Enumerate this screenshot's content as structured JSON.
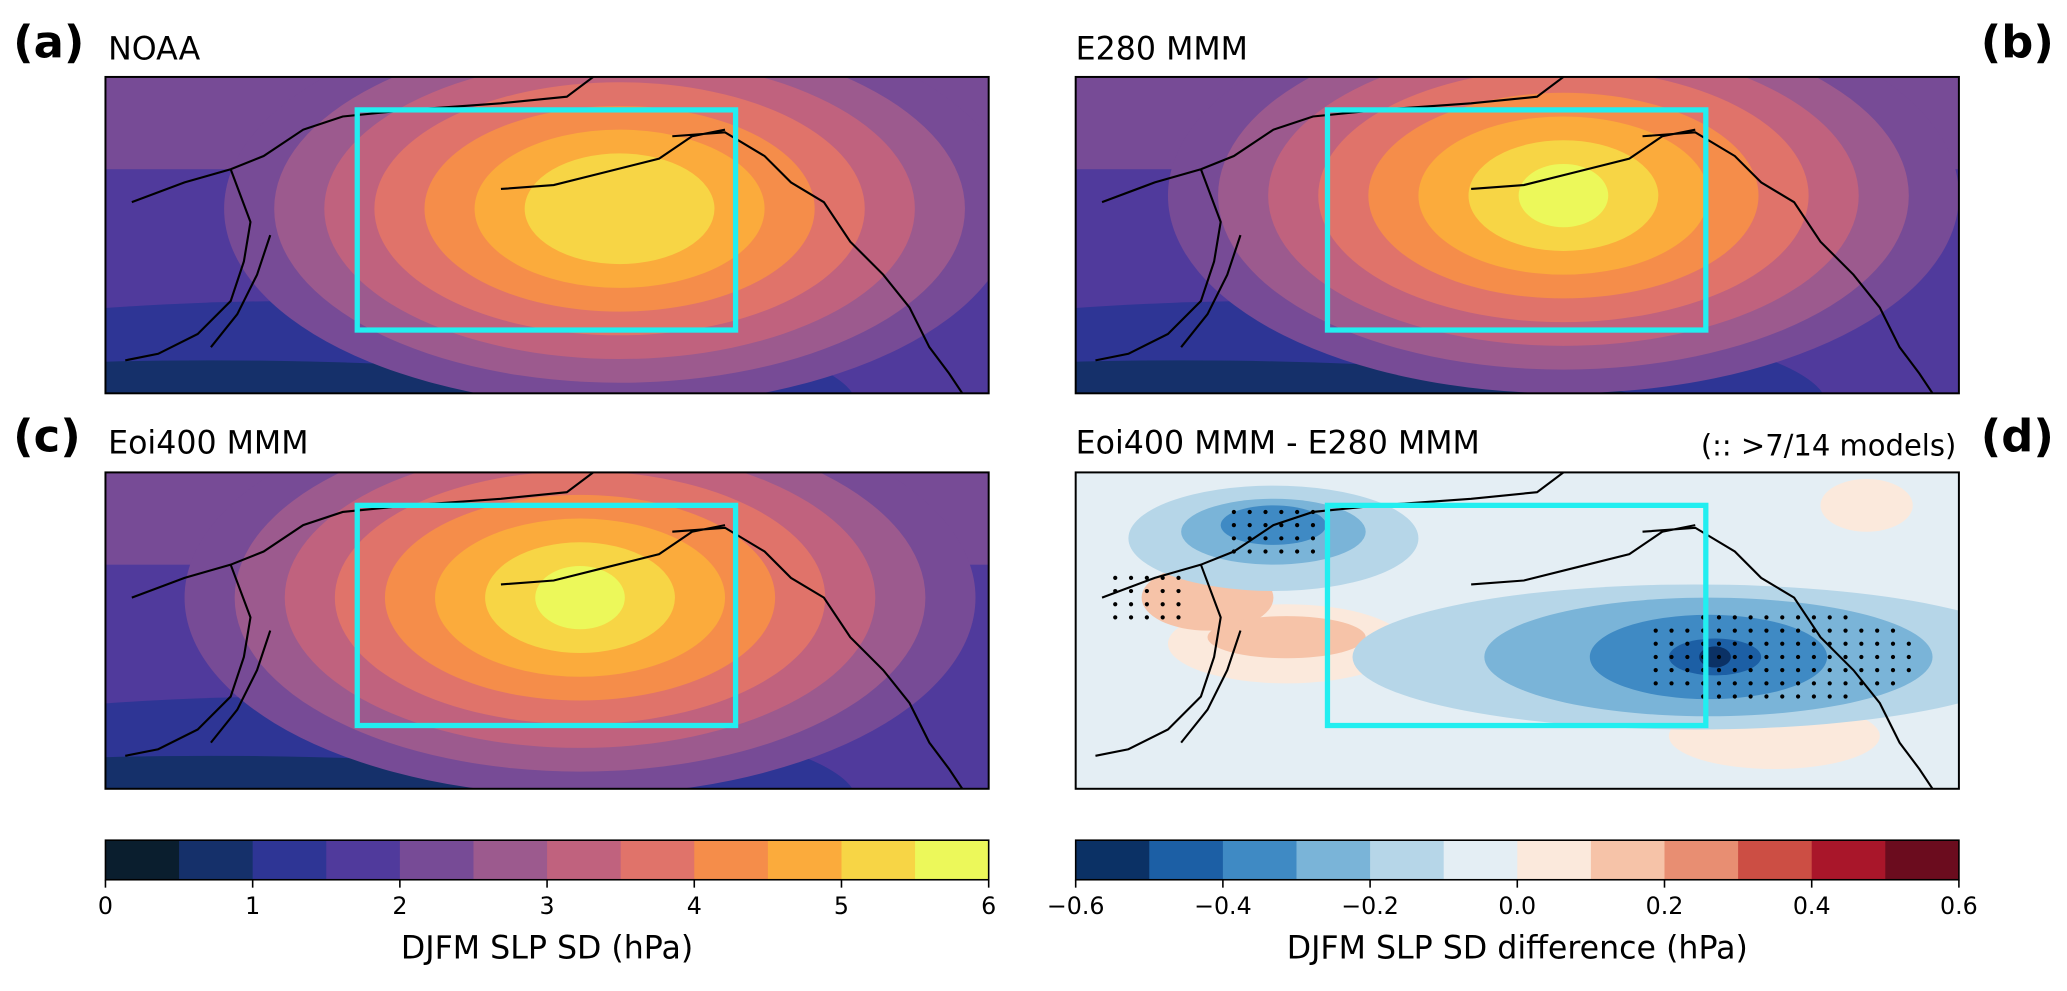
{
  "panels": [
    {
      "letter": "(a)",
      "title": "NOAA"
    },
    {
      "letter": "(b)",
      "title": "E280 MMM"
    },
    {
      "letter": "(c)",
      "title": "Eoi400 MMM"
    },
    {
      "letter": "(d)",
      "title": "Eoi400 MMM - E280 MMM",
      "note": "(:: >7/14 models)"
    }
  ],
  "colorbars": [
    {
      "label": "DJFM SLP SD (hPa)",
      "lim": [
        0,
        6
      ],
      "ticks": [
        0,
        1,
        2,
        3,
        4,
        5,
        6
      ],
      "colors": [
        "#0a1e2e",
        "#15306a",
        "#2e3595",
        "#503a9c",
        "#774b96",
        "#9c5a8e",
        "#c0627e",
        "#e0736a",
        "#f58d4a",
        "#fbab3c",
        "#f7d545",
        "#ecf85a"
      ]
    },
    {
      "label": "DJFM SLP SD difference (hPa)",
      "lim": [
        -0.6,
        0.6
      ],
      "ticks": [
        {
          "value": -0.6,
          "label": "−0.6"
        },
        {
          "value": -0.4,
          "label": "−0.4"
        },
        {
          "value": -0.2,
          "label": "−0.2"
        },
        {
          "value": 0,
          "label": "0.0"
        },
        0.2,
        0.4,
        0.6
      ],
      "colors": [
        "#0b3165",
        "#1c5fa5",
        "#3f8ac4",
        "#7ab4d8",
        "#b6d6e8",
        "#e4eef4",
        "#fbe9dc",
        "#f6c3a8",
        "#e88e72",
        "#cc4e44",
        "#a9162a",
        "#6b0c1e"
      ]
    }
  ]
}
